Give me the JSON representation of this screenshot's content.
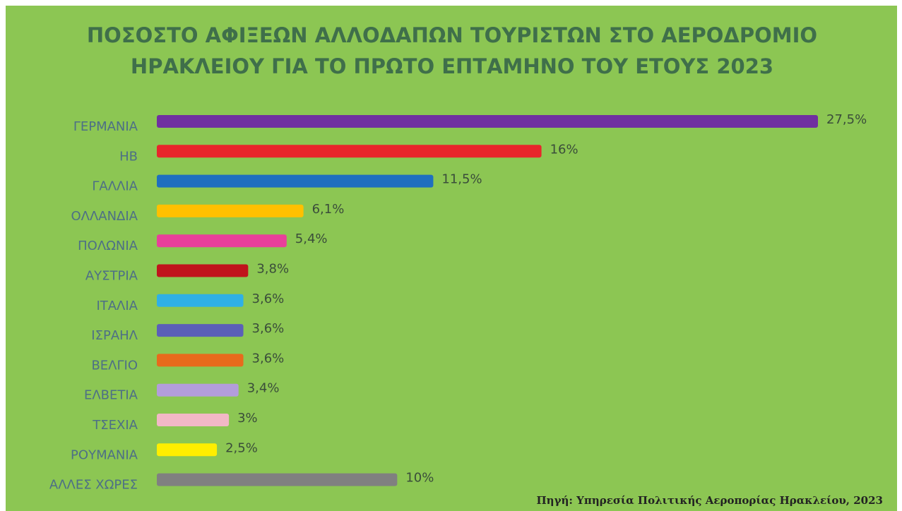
{
  "chart_data": {
    "type": "bar",
    "orientation": "horizontal",
    "title": [
      "ΠΟΣΟΣΤΟ ΑΦΙΞΕΩΝ ΑΛΛΟΔΑΠΩΝ ΤΟΥΡΙΣΤΩΝ ΣΤΟ ΑΕΡΟΔΡΟΜΙΟ",
      "ΗΡΑΚΛΕΙΟΥ ΓΙΑ ΤΟ ΠΡΩΤΟ ΕΠΤΑΜΗΝΟ ΤΟΥ ΕΤΟΥΣ 2023"
    ],
    "categories": [
      "ΓΕΡΜΑΝΙΑ",
      "ΗΒ",
      "ΓΑΛΛΙΑ",
      "ΟΛΛΑΝΔΙΑ",
      "ΠΟΛΩΝΙΑ",
      "ΑΥΣΤΡΙΑ",
      "ΙΤΑΛΙΑ",
      "ΙΣΡΑΗΛ",
      "ΒΕΛΓΙΟ",
      "ΕΛΒΕΤΙΑ",
      "ΤΣΕΧΙΑ",
      "ΡΟΥΜΑΝΙΑ",
      "ΑΛΛΕΣ ΧΩΡΕΣ"
    ],
    "values": [
      27.5,
      16,
      11.5,
      6.1,
      5.4,
      3.8,
      3.6,
      3.6,
      3.6,
      3.4,
      3,
      2.5,
      10
    ],
    "value_labels": [
      "27,5%",
      "16%",
      "11,5%",
      "6,1%",
      "5,4%",
      "3,8%",
      "3,6%",
      "3,6%",
      "3,6%",
      "3,4%",
      "3%",
      "2,5%",
      "10%"
    ],
    "colors": [
      "#7030a0",
      "#e8262b",
      "#1f6fbf",
      "#ffc000",
      "#e8409a",
      "#c0141c",
      "#2fb0e6",
      "#5b5fb8",
      "#e86a1c",
      "#b39ddb",
      "#f2b8c6",
      "#ffee00",
      "#808080"
    ],
    "source": "Πηγή: Υπηρεσία Πολιτικής Αεροπορίας Ηρακλείου, 2023"
  }
}
